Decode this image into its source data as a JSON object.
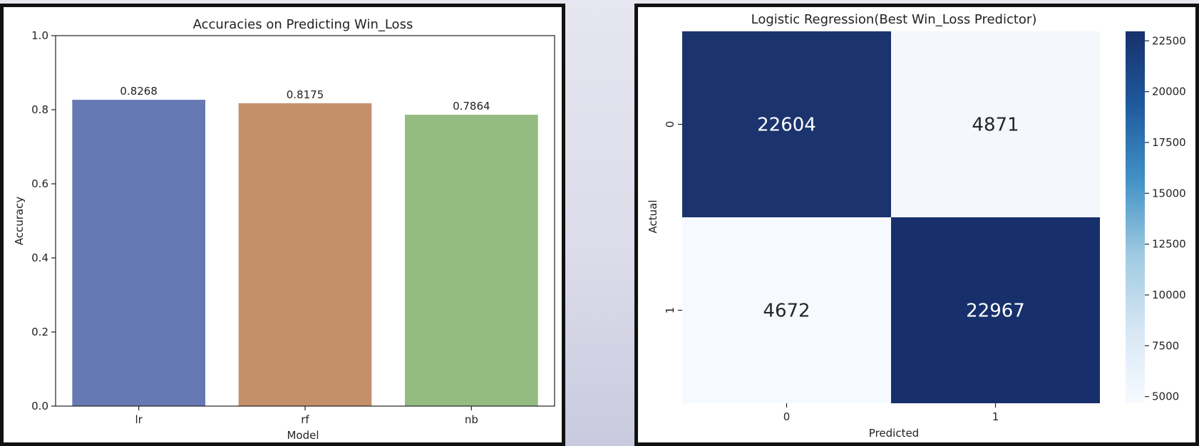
{
  "colors": {
    "lr": "#6779b4",
    "rf": "#c4906c",
    "nb": "#94bb82",
    "heat_low": "#f6fafe",
    "heat_high": "#17306b"
  },
  "chart_data": [
    {
      "type": "bar",
      "title": "Accuracies on Predicting Win_Loss",
      "xlabel": "Model",
      "ylabel": "Accuracy",
      "categories": [
        "lr",
        "rf",
        "nb"
      ],
      "values": [
        0.8268,
        0.8175,
        0.7864
      ],
      "value_labels": [
        "0.8268",
        "0.8175",
        "0.7864"
      ],
      "ylim": [
        0,
        1.0
      ],
      "yticks": [
        "0.0",
        "0.2",
        "0.4",
        "0.6",
        "0.8",
        "1.0"
      ],
      "grid": false,
      "legend": "none"
    },
    {
      "type": "heatmap",
      "title": "Logistic Regression(Best Win_Loss Predictor)",
      "xlabel": "Predicted",
      "ylabel": "Actual",
      "x_categories": [
        "0",
        "1"
      ],
      "y_categories": [
        "0",
        "1"
      ],
      "values": [
        [
          22604,
          4871
        ],
        [
          4672,
          22967
        ]
      ],
      "value_labels": [
        [
          "22604",
          "4871"
        ],
        [
          "4672",
          "22967"
        ]
      ],
      "colorbar_range": [
        4672,
        22967
      ],
      "colorbar_ticks": [
        "5000",
        "7500",
        "10000",
        "12500",
        "15000",
        "17500",
        "20000",
        "22500"
      ],
      "colormap": "Blues"
    }
  ]
}
